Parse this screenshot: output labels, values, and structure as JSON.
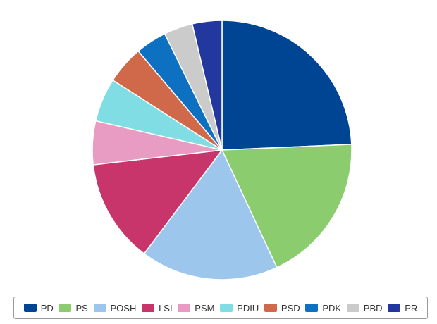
{
  "chart_data": {
    "type": "pie",
    "start_angle_deg": 0,
    "direction": "clockwise",
    "legend_position": "bottom",
    "slices": [
      {
        "label": "PD",
        "value": 25.0,
        "color": "#004494"
      },
      {
        "label": "PS",
        "value": 19.3,
        "color": "#8bcd6e"
      },
      {
        "label": "POSH",
        "value": 17.7,
        "color": "#9dc6ec"
      },
      {
        "label": "LSI",
        "value": 13.3,
        "color": "#c8356a"
      },
      {
        "label": "PSM",
        "value": 5.6,
        "color": "#e89cc4"
      },
      {
        "label": "PDIU",
        "value": 5.6,
        "color": "#7fdde3"
      },
      {
        "label": "PSD",
        "value": 4.9,
        "color": "#d0694a"
      },
      {
        "label": "PDK",
        "value": 4.0,
        "color": "#0e70c0"
      },
      {
        "label": "PBD",
        "value": 3.7,
        "color": "#cbcbcb"
      },
      {
        "label": "PR",
        "value": 3.8,
        "color": "#23389e"
      }
    ]
  }
}
